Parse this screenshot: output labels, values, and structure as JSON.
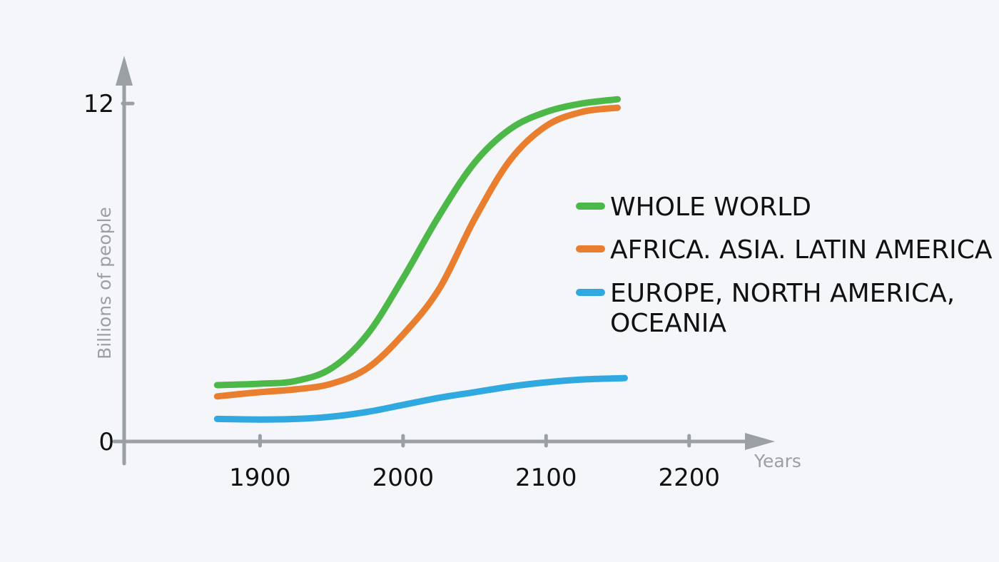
{
  "chart_data": {
    "type": "line",
    "title": "",
    "xlabel": "Years",
    "ylabel": "Billions of people",
    "x_ticks": [
      1900,
      2000,
      2100,
      2200
    ],
    "y_ticks": [
      0,
      12
    ],
    "xlim": [
      1805,
      2260
    ],
    "ylim": [
      0,
      13.7
    ],
    "grid": false,
    "legend": "right",
    "axis_color": "#9aa0a3",
    "series": [
      {
        "name": "WHOLE WORLD",
        "color": "#4cb848",
        "x": [
          1870,
          1900,
          1925,
          1950,
          1975,
          2000,
          2025,
          2050,
          2075,
          2100,
          2125,
          2150
        ],
        "y": [
          2.0,
          2.05,
          2.15,
          2.6,
          3.8,
          5.8,
          8.0,
          9.9,
          11.1,
          11.7,
          12.0,
          12.15
        ]
      },
      {
        "name": "AFRICA, ASIA, LATIN AMERICA",
        "display_lines": [
          "AFRICA. ASIA. LATIN AMERICA"
        ],
        "color": "#e97e2e",
        "x": [
          1870,
          1900,
          1925,
          1950,
          1975,
          2000,
          2025,
          2050,
          2075,
          2100,
          2125,
          2150
        ],
        "y": [
          1.6,
          1.75,
          1.85,
          2.05,
          2.6,
          3.8,
          5.4,
          7.9,
          10.0,
          11.2,
          11.7,
          11.85
        ]
      },
      {
        "name": "EUROPE, NORTH AMERICA, OCEANIA",
        "display_lines": [
          "EUROPE, NORTH AMERICA,",
          "OCEANIA"
        ],
        "color": "#2fa9e0",
        "x": [
          1870,
          1900,
          1925,
          1950,
          1975,
          2000,
          2025,
          2050,
          2075,
          2100,
          2125,
          2155
        ],
        "y": [
          0.8,
          0.78,
          0.8,
          0.88,
          1.05,
          1.3,
          1.55,
          1.75,
          1.95,
          2.1,
          2.2,
          2.25
        ]
      }
    ]
  }
}
